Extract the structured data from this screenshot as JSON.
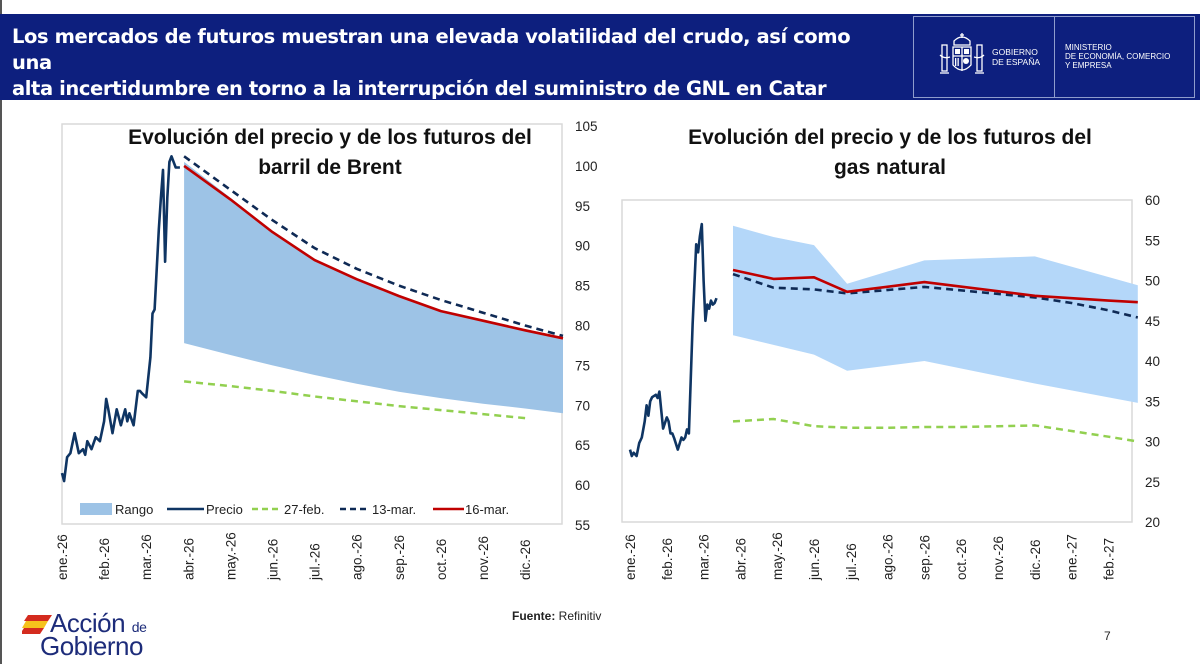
{
  "header": {
    "title_line1": "Los mercados de futuros muestran una elevada volatilidad del crudo, así como una",
    "title_line2": "alta incertidumbre en torno a la interrupción del suministro de GNL en Catar",
    "gov_line1": "GOBIERNO",
    "gov_line2": "DE ESPAÑA",
    "ministry_line1": "MINISTERIO",
    "ministry_line2": "DE ECONOMÍA, COMERCIO",
    "ministry_line3": "Y EMPRESA"
  },
  "footer": {
    "source_label": "Fuente:",
    "source_value": " Refinitiv",
    "page_number": "7",
    "logo_line1": "Acción",
    "logo_de": "de",
    "logo_line2": "Gobierno"
  },
  "colors": {
    "header_bg": "#0d1f7e",
    "brent_range": "#9dc3e6",
    "gas_range": "#b4d7f9",
    "precio": "#0f3563",
    "feb27": "#92d050",
    "mar13": "#0f2a55",
    "mar16": "#c00000"
  },
  "chart_data": [
    {
      "type": "line",
      "title_line1": "Evolución del precio y de los futuros del",
      "title_line2": "barril de Brent",
      "xlabel": "",
      "ylabel": "",
      "ylim": [
        55,
        105
      ],
      "yticks": [
        55,
        60,
        65,
        70,
        75,
        80,
        85,
        90,
        95,
        100,
        105
      ],
      "y_axis_side": "right",
      "x_tick_labels": [
        "ene.-26",
        "feb.-26",
        "mar.-26",
        "abr.-26",
        "may.-26",
        "jun.-26",
        "jul.-26",
        "ago.-26",
        "sep.-26",
        "oct.-26",
        "nov.-26",
        "dic.-26"
      ],
      "legend": [
        "Rango",
        "Precio",
        "27-feb.",
        "13-mar.",
        "16-mar."
      ],
      "legend_position": "bottom",
      "x_unit": "months since ene.-26",
      "series": [
        {
          "name": "Rango",
          "kind": "band",
          "x": [
            2.9,
            4,
            5,
            6,
            7,
            8,
            9,
            10,
            11,
            11.9
          ],
          "low": [
            77.8,
            76.3,
            75.0,
            73.8,
            72.7,
            71.7,
            70.9,
            70.2,
            69.6,
            69.0
          ],
          "high": [
            100.5,
            96.0,
            91.8,
            88.3,
            85.8,
            83.6,
            81.8,
            80.5,
            79.3,
            78.4
          ]
        },
        {
          "name": "Precio",
          "kind": "solid",
          "x": [
            0.0,
            0.05,
            0.12,
            0.2,
            0.3,
            0.4,
            0.5,
            0.55,
            0.6,
            0.7,
            0.8,
            0.9,
            1.0,
            1.05,
            1.1,
            1.2,
            1.3,
            1.4,
            1.45,
            1.5,
            1.55,
            1.6,
            1.7,
            1.8,
            1.85,
            1.9,
            2.0,
            2.1,
            2.15,
            2.2,
            2.3,
            2.35,
            2.4,
            2.45,
            2.5,
            2.55,
            2.6,
            2.65,
            2.7,
            2.75,
            2.8
          ],
          "y": [
            61.5,
            60.5,
            63.5,
            64.0,
            66.5,
            64.0,
            64.5,
            63.8,
            65.5,
            64.5,
            66.0,
            65.5,
            68.0,
            70.8,
            69.5,
            66.5,
            69.5,
            67.5,
            68.5,
            69.5,
            68.0,
            69.0,
            67.5,
            71.8,
            71.8,
            71.5,
            71.0,
            76.0,
            81.5,
            82.0,
            92.0,
            96.0,
            99.5,
            88.0,
            96.0,
            100.5,
            101.2,
            100.5,
            99.8,
            99.8,
            99.8
          ]
        },
        {
          "name": "27-feb.",
          "kind": "dashed",
          "x": [
            2.9,
            4,
            5,
            6,
            7,
            8,
            9,
            10,
            11
          ],
          "y": [
            73.0,
            72.4,
            71.8,
            71.1,
            70.5,
            69.9,
            69.4,
            68.9,
            68.4
          ]
        },
        {
          "name": "13-mar.",
          "kind": "dashed",
          "x": [
            2.9,
            4,
            5,
            6,
            7,
            8,
            9,
            10,
            11,
            11.9
          ],
          "y": [
            101.2,
            97.0,
            93.2,
            89.7,
            87.1,
            85.0,
            83.2,
            81.6,
            80.0,
            78.7
          ]
        },
        {
          "name": "16-mar.",
          "kind": "solid",
          "x": [
            2.9,
            4,
            5,
            6,
            7,
            8,
            9,
            10,
            11,
            11.9
          ],
          "y": [
            100.0,
            95.8,
            91.7,
            88.2,
            85.8,
            83.7,
            81.8,
            80.6,
            79.4,
            78.4
          ]
        }
      ]
    },
    {
      "type": "line",
      "title_line1": "Evolución del precio y de los futuros del",
      "title_line2": "gas natural",
      "xlabel": "",
      "ylabel": "",
      "ylim": [
        20,
        60
      ],
      "yticks": [
        20,
        25,
        30,
        35,
        40,
        45,
        50,
        55,
        60
      ],
      "y_axis_side": "right",
      "x_tick_labels": [
        "ene.-26",
        "feb.-26",
        "mar.-26",
        "abr.-26",
        "may.-26",
        "jun.-26",
        "jul.-26",
        "ago.-26",
        "sep.-26",
        "oct.-26",
        "nov.-26",
        "dic.-26",
        "ene.-27",
        "feb.-27"
      ],
      "legend": [],
      "x_unit": "months since ene.-26",
      "series": [
        {
          "name": "Rango",
          "kind": "band",
          "x": [
            2.8,
            3.9,
            5.0,
            5.9,
            8.0,
            11.0,
            13.8
          ],
          "low": [
            43.2,
            42.0,
            40.8,
            38.8,
            40.0,
            37.2,
            34.8
          ],
          "high": [
            56.8,
            55.4,
            54.4,
            49.6,
            52.5,
            53.0,
            49.4
          ]
        },
        {
          "name": "Precio",
          "kind": "solid",
          "x": [
            0.0,
            0.05,
            0.1,
            0.18,
            0.25,
            0.32,
            0.4,
            0.45,
            0.5,
            0.55,
            0.6,
            0.7,
            0.75,
            0.8,
            0.85,
            0.9,
            1.0,
            1.05,
            1.1,
            1.15,
            1.2,
            1.3,
            1.4,
            1.45,
            1.5,
            1.55,
            1.6,
            1.7,
            1.8,
            1.85,
            1.9,
            1.95,
            2.0,
            2.05,
            2.1,
            2.15,
            2.2,
            2.25,
            2.3,
            2.35
          ],
          "y": [
            29.0,
            28.2,
            28.6,
            28.2,
            29.8,
            30.5,
            32.5,
            34.5,
            33.2,
            35.0,
            35.5,
            35.8,
            35.4,
            36.2,
            33.8,
            31.6,
            33.0,
            32.5,
            31.0,
            31.0,
            30.4,
            29.0,
            30.5,
            30.2,
            30.5,
            31.5,
            31.0,
            44.5,
            54.5,
            53.5,
            55.5,
            57.0,
            50.0,
            45.0,
            47.0,
            46.5,
            47.5,
            47.0,
            47.2,
            47.8
          ]
        },
        {
          "name": "27-feb.",
          "kind": "dashed",
          "x": [
            2.8,
            3.9,
            5.0,
            6.0,
            7.0,
            8.0,
            9.0,
            10.0,
            11.0,
            12.0,
            13.0,
            13.8
          ],
          "y": [
            32.5,
            32.8,
            31.9,
            31.7,
            31.7,
            31.8,
            31.8,
            31.9,
            32.0,
            31.3,
            30.6,
            30.0
          ]
        },
        {
          "name": "13-mar.",
          "kind": "dashed",
          "x": [
            2.8,
            3.9,
            5.0,
            5.9,
            8.0,
            11.0,
            12.0,
            13.0,
            13.8
          ],
          "y": [
            50.8,
            49.1,
            48.9,
            48.4,
            49.2,
            47.9,
            47.2,
            46.3,
            45.4
          ]
        },
        {
          "name": "16-mar.",
          "kind": "solid",
          "x": [
            2.8,
            3.9,
            5.0,
            5.9,
            8.0,
            11.0,
            12.0,
            13.0,
            13.8
          ],
          "y": [
            51.3,
            50.2,
            50.4,
            48.6,
            49.8,
            48.1,
            47.8,
            47.5,
            47.3
          ]
        }
      ]
    }
  ]
}
